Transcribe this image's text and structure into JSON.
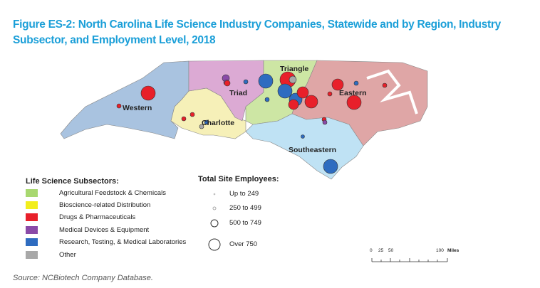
{
  "title": "Figure ES-2: North Carolina Life Science Industry Companies, Statewide and by Region, Industry Subsector, and Employment Level, 2018",
  "regions": {
    "western": "Western",
    "charlotte": "Charlotte",
    "triad": "Triad",
    "triangle": "Triangle",
    "eastern": "Eastern",
    "southeastern": "Southeastern"
  },
  "subsectors": {
    "title": "Life Science Subsectors:",
    "items": [
      {
        "label": "Agricultural Feedstock & Chemicals",
        "color": "#a8d870"
      },
      {
        "label": "Bioscience-related Distribution",
        "color": "#f2ee1c"
      },
      {
        "label": "Drugs & Pharmaceuticals",
        "color": "#e8202a"
      },
      {
        "label": "Medical Devices & Equipment",
        "color": "#8a4aa8"
      },
      {
        "label": "Research, Testing, & Medical Laboratories",
        "color": "#2e6cc0"
      },
      {
        "label": "Other",
        "color": "#a8a8a8"
      }
    ]
  },
  "employees": {
    "title": "Total Site Employees:",
    "items": [
      "Up to 249",
      "250 to 499",
      "500 to 749",
      "Over 750"
    ]
  },
  "scale": {
    "ticks": [
      "0",
      "25",
      "50",
      "100"
    ],
    "unit": "Miles"
  },
  "source": "Source: NCBiotech Company Database."
}
